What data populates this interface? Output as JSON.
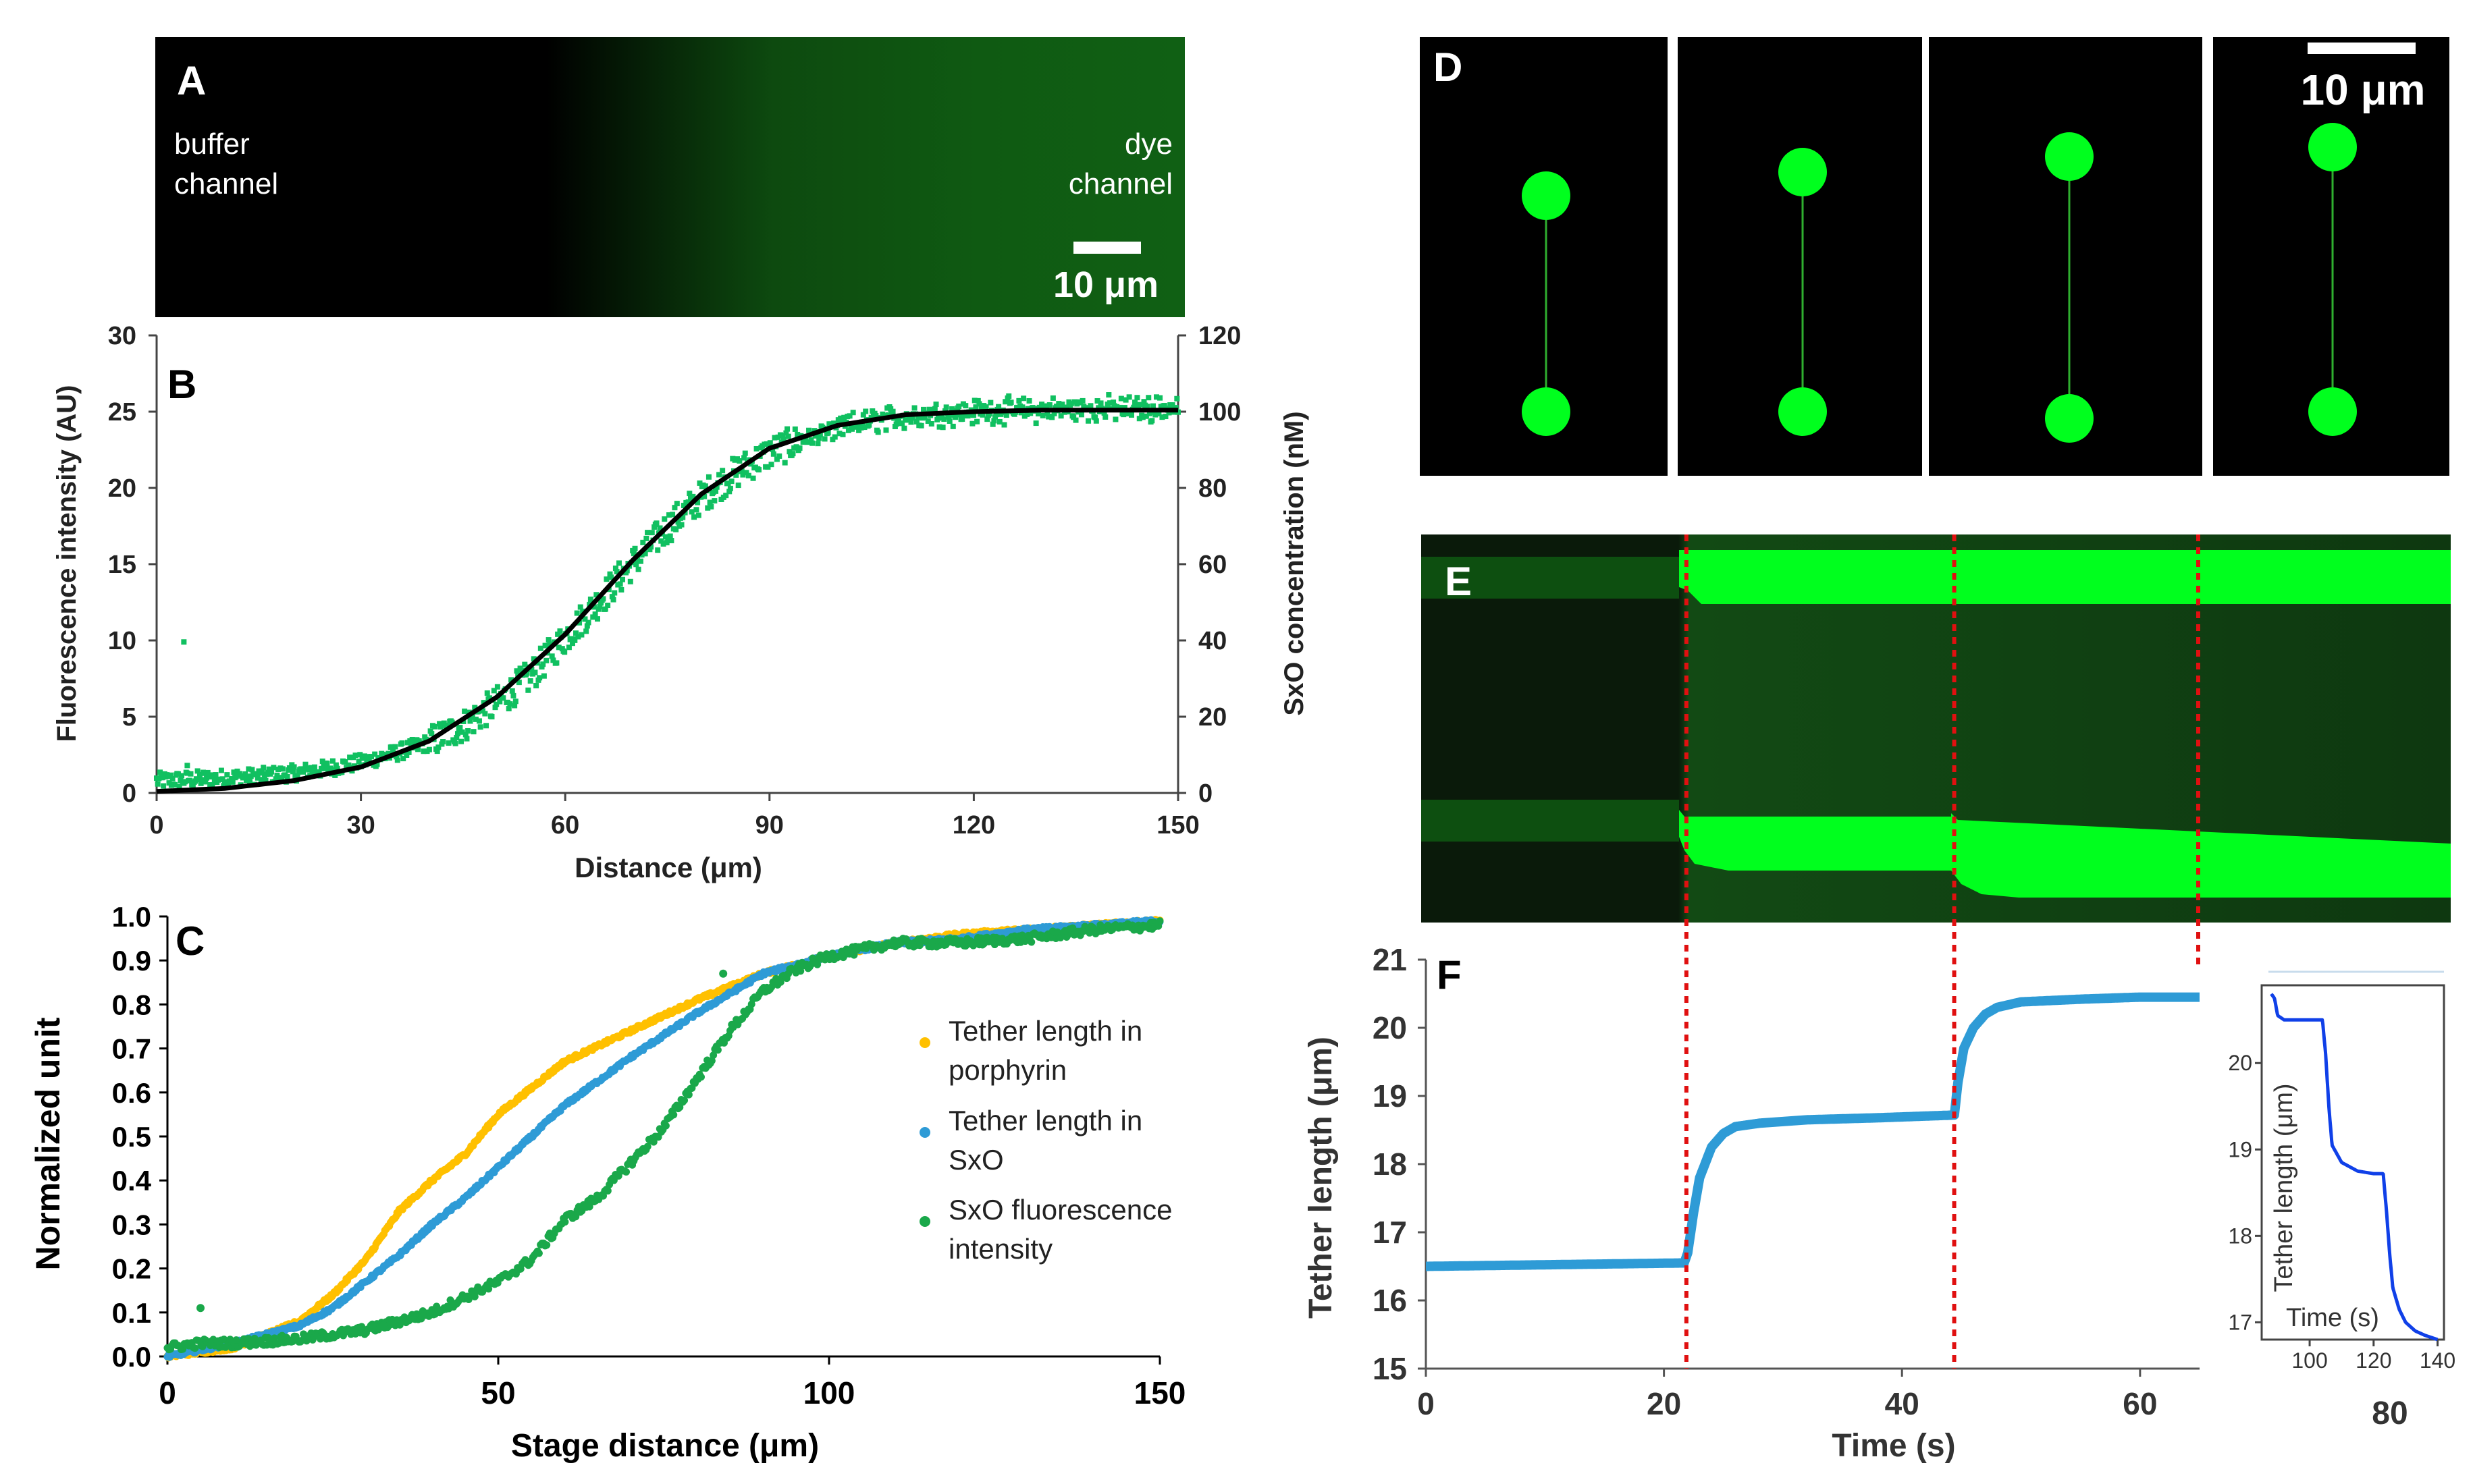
{
  "panels": {
    "A": {
      "letter": "A",
      "left_label_line1": "buffer",
      "left_label_line2": "channel",
      "right_label_line1": "dye",
      "right_label_line2": "channel",
      "scale_bar": "10 μm"
    },
    "D": {
      "letter": "D",
      "scale_bar": "10 μm",
      "frame_count": 4
    },
    "E": {
      "letter": "E"
    }
  },
  "colors": {
    "green_fluor": "#00ff1e",
    "green_dots": "#10c060",
    "fit_line": "#000000",
    "yellow": "#ffc000",
    "blue": "#2e9bd6",
    "green": "#1aa84a",
    "red_dashed": "#e01010",
    "inset_blue": "#1040e8"
  },
  "chart_data": [
    {
      "panel": "B",
      "letter": "B",
      "type": "scatter",
      "xlabel": "Distance (μm)",
      "ylabel": "Fluorescence intensity (AU)",
      "y2label": "SxO concentration (nM)",
      "xlim": [
        0,
        150
      ],
      "ylim": [
        0,
        30
      ],
      "y2lim": [
        0,
        120
      ],
      "x_ticks": [
        "0",
        "30",
        "60",
        "90",
        "120",
        "150"
      ],
      "y_ticks": [
        "0",
        "5",
        "10",
        "15",
        "20",
        "25",
        "30"
      ],
      "y2_ticks": [
        "0",
        "20",
        "40",
        "60",
        "80",
        "100",
        "120"
      ],
      "series": [
        {
          "name": "fluorescence",
          "model": "sigmoid",
          "params": {
            "base": 0.8,
            "amp": 24.4,
            "mid": 68,
            "width": 13
          },
          "x": [
            0,
            5,
            10,
            15,
            20,
            25,
            30,
            35,
            40,
            45,
            50,
            55,
            60,
            65,
            70,
            75,
            80,
            85,
            90,
            95,
            100,
            105,
            110,
            115,
            120,
            125,
            130,
            135,
            140,
            145,
            150
          ],
          "values": [
            0.8,
            0.9,
            1.0,
            1.1,
            1.3,
            1.6,
            2.0,
            2.6,
            3.3,
            4.4,
            5.9,
            7.7,
            10.2,
            12.6,
            15.1,
            17.4,
            19.4,
            21.0,
            22.3,
            23.2,
            23.8,
            24.3,
            24.6,
            24.8,
            24.9,
            25.0,
            25.0,
            25.1,
            25.1,
            25.1,
            25.2
          ]
        },
        {
          "name": "fit",
          "x": [
            0,
            10,
            20,
            30,
            40,
            50,
            60,
            70,
            80,
            90,
            100,
            110,
            120,
            130,
            140,
            150
          ],
          "values": [
            0.1,
            0.3,
            0.8,
            1.7,
            3.4,
            6.3,
            10.4,
            15.3,
            19.6,
            22.6,
            24.1,
            24.8,
            25.0,
            25.1,
            25.1,
            25.1
          ]
        }
      ],
      "outliers": [
        {
          "x": 4,
          "y": 9.9
        },
        {
          "x": 4.5,
          "y": 1.8
        }
      ]
    },
    {
      "panel": "C",
      "letter": "C",
      "type": "scatter",
      "xlabel": "Stage distance (μm)",
      "ylabel": "Normalized unit",
      "xlim": [
        0,
        150
      ],
      "ylim": [
        0,
        1
      ],
      "x_ticks": [
        "0",
        "50",
        "100",
        "150"
      ],
      "y_ticks": [
        "0.0",
        "0.1",
        "0.2",
        "0.3",
        "0.4",
        "0.5",
        "0.6",
        "0.7",
        "0.8",
        "0.9",
        "1.0"
      ],
      "series": [
        {
          "name": "Tether length in porphyrin",
          "legend_line1": "Tether length in",
          "legend_line2": "porphyrin",
          "color": "#ffc000",
          "x": [
            0,
            10,
            20,
            25,
            30,
            35,
            40,
            45,
            50,
            55,
            60,
            70,
            80,
            90,
            100,
            110,
            120,
            130,
            140,
            150
          ],
          "values": [
            0.0,
            0.02,
            0.08,
            0.14,
            0.22,
            0.33,
            0.4,
            0.46,
            0.55,
            0.61,
            0.67,
            0.74,
            0.81,
            0.87,
            0.91,
            0.94,
            0.96,
            0.97,
            0.98,
            0.99
          ]
        },
        {
          "name": "Tether length in SxO",
          "legend_line1": "Tether length in",
          "legend_line2": "SxO",
          "color": "#2e9bd6",
          "x": [
            0,
            10,
            20,
            25,
            30,
            35,
            40,
            45,
            50,
            55,
            60,
            70,
            80,
            90,
            100,
            110,
            120,
            130,
            140,
            150
          ],
          "values": [
            0.0,
            0.03,
            0.07,
            0.11,
            0.17,
            0.23,
            0.3,
            0.36,
            0.43,
            0.5,
            0.57,
            0.68,
            0.78,
            0.87,
            0.91,
            0.94,
            0.95,
            0.97,
            0.98,
            0.99
          ]
        },
        {
          "name": "SxO fluorescence intensity",
          "legend_line1": "SxO fluorescence",
          "legend_line2": "intensity",
          "color": "#1aa84a",
          "x": [
            0,
            5,
            10,
            20,
            30,
            40,
            50,
            55,
            60,
            65,
            70,
            75,
            80,
            85,
            90,
            95,
            100,
            110,
            120,
            130,
            140,
            150
          ],
          "values": [
            0.02,
            0.03,
            0.03,
            0.04,
            0.06,
            0.1,
            0.17,
            0.22,
            0.31,
            0.36,
            0.44,
            0.52,
            0.63,
            0.74,
            0.83,
            0.88,
            0.91,
            0.94,
            0.94,
            0.95,
            0.97,
            0.98
          ]
        }
      ],
      "outliers": [
        {
          "x": 5,
          "y": 0.11
        },
        {
          "x": 84,
          "y": 0.87
        }
      ]
    },
    {
      "panel": "F",
      "letter": "F",
      "type": "line",
      "xlabel": "Time (s)",
      "ylabel": "Tether length (μm)",
      "xlim": [
        0,
        65
      ],
      "ylim": [
        15,
        21
      ],
      "x_ticks": [
        "0",
        "20",
        "40",
        "60"
      ],
      "y_ticks": [
        "15",
        "16",
        "17",
        "18",
        "19",
        "20",
        "21"
      ],
      "dashed_markers_x": [
        22,
        44.5,
        65
      ],
      "series": [
        {
          "name": "Tether length",
          "color": "#2e9bd6",
          "x": [
            0,
            21.7,
            22.0,
            22.5,
            23,
            24,
            25,
            26,
            28,
            32,
            38,
            44.4,
            44.7,
            45.2,
            46,
            47,
            48,
            50,
            55,
            60,
            65
          ],
          "values": [
            16.5,
            16.55,
            16.7,
            17.3,
            17.8,
            18.25,
            18.45,
            18.55,
            18.6,
            18.65,
            18.68,
            18.72,
            19.2,
            19.7,
            20.0,
            20.2,
            20.3,
            20.38,
            20.42,
            20.45,
            20.45
          ]
        }
      ]
    },
    {
      "panel": "F-inset",
      "type": "line",
      "xlabel": "Time (s)",
      "ylabel": "Tether length (μm)",
      "xlim": [
        85,
        142
      ],
      "ylim": [
        16.8,
        20.9
      ],
      "x_ticks": [
        "100",
        "120",
        "140"
      ],
      "y_ticks": [
        "17",
        "18",
        "19",
        "20"
      ],
      "extra_tick_label": "80",
      "series": [
        {
          "name": "Tether length",
          "color": "#1040e8",
          "x": [
            88,
            89,
            90,
            92,
            100,
            104,
            105,
            106,
            107,
            110,
            115,
            120,
            123,
            124,
            125,
            126,
            128,
            130,
            133,
            136,
            140
          ],
          "values": [
            20.8,
            20.75,
            20.55,
            20.5,
            20.5,
            20.5,
            20.1,
            19.5,
            19.05,
            18.85,
            18.75,
            18.72,
            18.72,
            18.3,
            17.8,
            17.4,
            17.15,
            17.0,
            16.9,
            16.85,
            16.8
          ]
        }
      ]
    }
  ]
}
